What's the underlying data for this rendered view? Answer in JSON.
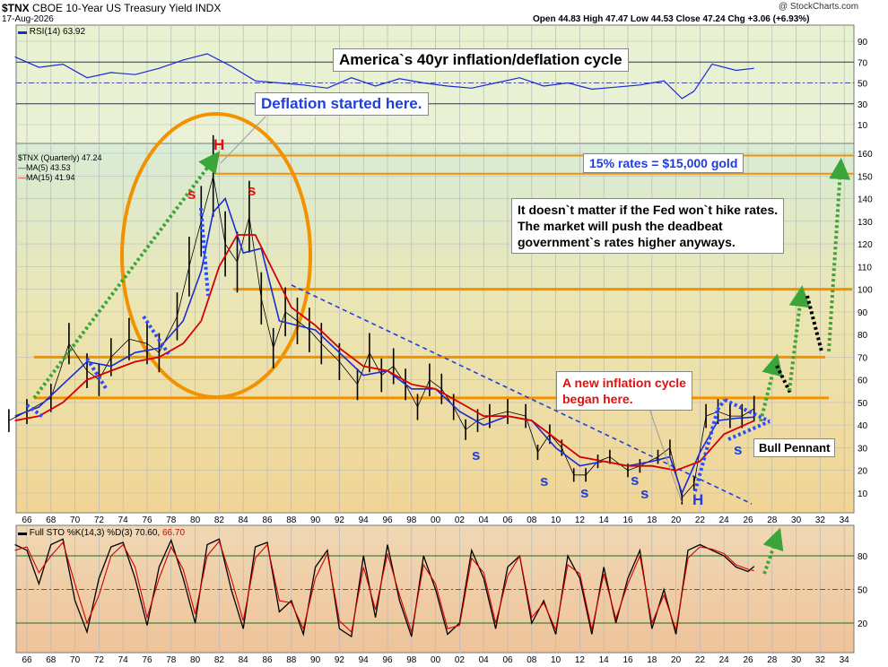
{
  "header": {
    "symbol": "$TNX",
    "description": "CBOE 10-Year US Treasury Yield INDX",
    "date": "17-Aug-2026",
    "ohlc": "Open 44.83  High 47.47  Low 44.53  Close 47.24  Chg +3.06 (+6.93%)",
    "watermark": "@ StockCharts.com"
  },
  "rsi_panel": {
    "legend": "RSI(14) 63.92",
    "ticks": [
      90,
      70,
      50,
      30,
      10
    ]
  },
  "main_panel": {
    "legend_symbol": "$TNX (Quarterly) 47.24",
    "legend_ma5": "MA(5) 43.53",
    "legend_ma15": "MA(15) 41.94",
    "ticks": [
      160,
      150,
      140,
      130,
      120,
      110,
      100,
      90,
      80,
      70,
      60,
      50,
      40,
      30,
      20,
      10
    ]
  },
  "sto_panel": {
    "legend_prefix": "Full STO %K(14,3) %D(3) 70.60, ",
    "legend_d": "66.70",
    "ticks": [
      80,
      50,
      20
    ]
  },
  "x_labels": [
    "66",
    "68",
    "70",
    "72",
    "74",
    "76",
    "78",
    "80",
    "82",
    "84",
    "86",
    "88",
    "90",
    "92",
    "94",
    "96",
    "98",
    "00",
    "02",
    "04",
    "06",
    "08",
    "10",
    "12",
    "14",
    "16",
    "18",
    "20",
    "22",
    "24",
    "26",
    "28",
    "30",
    "32",
    "34"
  ],
  "annotations": {
    "title": "America`s 40yr inflation/deflation cycle",
    "deflation": "Deflation started here.",
    "gold": "15% rates = $15,000 gold",
    "fed": "It doesn`t matter if the Fed won`t hike rates.\nThe market will push the deadbeat\ngovernment`s rates higher anyways.",
    "inflation": "A new inflation cycle\nbegan here.",
    "pennant": "Bull Pennant",
    "h_top": "H",
    "h_bottom": "H",
    "s_label": "s"
  },
  "colors": {
    "price": "#000000",
    "ma5": "#1a2bd6",
    "ma15": "#d40000",
    "orange": "#f39200",
    "green_arrow": "#3aa63a",
    "blue_arrow": "#2a4bff",
    "rsi_bg_top": "#e9f3cf",
    "main_bg_top": "#d9ecd4",
    "main_bg_bottom": "#f1d69a",
    "sto_bg": "#f2c9a0"
  },
  "chart_data": [
    {
      "type": "line",
      "title": "RSI(14)",
      "x": [
        1965,
        1967,
        1969,
        1971,
        1973,
        1975,
        1977,
        1979,
        1981,
        1983,
        1985,
        1987,
        1989,
        1991,
        1993,
        1995,
        1997,
        1999,
        2001,
        2003,
        2005,
        2007,
        2009,
        2011,
        2013,
        2015,
        2017,
        2019,
        2020.5,
        2021.5,
        2023,
        2025,
        2026.5
      ],
      "y": [
        75,
        65,
        68,
        55,
        60,
        58,
        64,
        72,
        78,
        66,
        52,
        50,
        48,
        45,
        55,
        47,
        54,
        50,
        47,
        45,
        50,
        55,
        47,
        50,
        44,
        46,
        48,
        52,
        35,
        42,
        68,
        62,
        64
      ],
      "ylim": [
        0,
        100
      ],
      "reference_lines": [
        70,
        50,
        30
      ]
    },
    {
      "type": "line",
      "title": "$TNX (Quarterly)",
      "series": [
        {
          "name": "$TNX",
          "x": [
            1964.5,
            1966,
            1968,
            1969.5,
            1971,
            1972,
            1973,
            1974.5,
            1976,
            1977,
            1978.5,
            1979.5,
            1980.5,
            1981.5,
            1982.5,
            1983.5,
            1984.5,
            1985.5,
            1986.5,
            1987.5,
            1988.5,
            1989.5,
            1990.5,
            1992,
            1993.5,
            1994.5,
            1995.5,
            1996.5,
            1997.5,
            1998.5,
            1999.5,
            2000.5,
            2001.5,
            2002.5,
            2003.5,
            2004.5,
            2006,
            2007.5,
            2008.5,
            2009.5,
            2010.5,
            2011.5,
            2012.5,
            2013.5,
            2014.5,
            2016,
            2017,
            2018.5,
            2019.5,
            2020.5,
            2021.5,
            2022.5,
            2023.5,
            2024.5,
            2025.5,
            2026.5
          ],
          "y": [
            42,
            46,
            52,
            76,
            64,
            60,
            70,
            78,
            76,
            72,
            88,
            110,
            130,
            150,
            120,
            112,
            132,
            96,
            74,
            90,
            86,
            82,
            76,
            68,
            58,
            72,
            62,
            66,
            58,
            48,
            60,
            56,
            48,
            38,
            42,
            44,
            46,
            44,
            28,
            36,
            30,
            18,
            18,
            24,
            26,
            20,
            22,
            26,
            30,
            8,
            14,
            44,
            46,
            44,
            44,
            47.24
          ]
        },
        {
          "name": "MA(5)",
          "x": [
            1965,
            1967,
            1969,
            1971,
            1973,
            1975,
            1977,
            1979,
            1980.5,
            1981.5,
            1982.5,
            1984,
            1985.5,
            1987,
            1988.5,
            1990,
            1992,
            1994,
            1996,
            1998,
            2000,
            2002,
            2004,
            2006,
            2008,
            2010,
            2012,
            2014,
            2016,
            2018,
            2019.5,
            2020.5,
            2022,
            2023.5,
            2025,
            2026.5
          ],
          "y": [
            44,
            48,
            58,
            68,
            66,
            72,
            74,
            86,
            108,
            134,
            140,
            116,
            118,
            86,
            84,
            82,
            72,
            62,
            64,
            56,
            56,
            46,
            40,
            44,
            42,
            30,
            22,
            24,
            22,
            24,
            26,
            10,
            28,
            42,
            43,
            43.53
          ]
        },
        {
          "name": "MA(15)",
          "x": [
            1965,
            1967,
            1969,
            1971,
            1973,
            1975,
            1977,
            1979,
            1980.5,
            1982,
            1983.5,
            1985,
            1986.5,
            1988,
            1990,
            1992,
            1994,
            1996,
            1998,
            2000,
            2002,
            2004,
            2006,
            2008,
            2010,
            2012,
            2014,
            2016,
            2018,
            2020,
            2022,
            2024,
            2026.5
          ],
          "y": [
            42,
            44,
            50,
            60,
            64,
            68,
            70,
            76,
            86,
            110,
            124,
            124,
            108,
            92,
            84,
            74,
            66,
            64,
            58,
            56,
            50,
            44,
            44,
            42,
            34,
            26,
            24,
            22,
            22,
            20,
            24,
            36,
            41.94
          ]
        }
      ],
      "ylim": [
        0,
        165
      ],
      "resistance_levels": [
        159,
        151,
        100,
        70,
        52
      ]
    },
    {
      "type": "line",
      "title": "Full STO %K(14,3) %D(3)",
      "series": [
        {
          "name": "%K",
          "x": [
            1965,
            1966,
            1967,
            1968,
            1969,
            1970,
            1971,
            1972,
            1973,
            1974,
            1975,
            1976,
            1977,
            1978,
            1979,
            1980,
            1981,
            1982,
            1983,
            1984,
            1985,
            1986,
            1987,
            1988,
            1989,
            1990,
            1991,
            1992,
            1993,
            1994,
            1995,
            1996,
            1997,
            1998,
            1999,
            2000,
            2001,
            2002,
            2003,
            2004,
            2005,
            2006,
            2007,
            2008,
            2009,
            2010,
            2011,
            2012,
            2013,
            2014,
            2015,
            2016,
            2017,
            2018,
            2019,
            2020,
            2021,
            2022,
            2023,
            2024,
            2025,
            2026,
            2026.5
          ],
          "y": [
            90,
            85,
            55,
            90,
            95,
            40,
            12,
            60,
            88,
            92,
            60,
            18,
            70,
            94,
            60,
            20,
            90,
            95,
            50,
            15,
            88,
            92,
            30,
            40,
            10,
            70,
            85,
            15,
            8,
            80,
            25,
            90,
            40,
            8,
            80,
            50,
            10,
            20,
            85,
            60,
            15,
            70,
            80,
            20,
            40,
            10,
            80,
            60,
            10,
            70,
            20,
            60,
            85,
            15,
            50,
            10,
            85,
            90,
            85,
            80,
            70,
            66,
            70.6
          ]
        },
        {
          "name": "%D",
          "x": [
            1965,
            1966,
            1967,
            1968,
            1969,
            1970,
            1971,
            1972,
            1973,
            1974,
            1975,
            1976,
            1977,
            1978,
            1979,
            1980,
            1981,
            1982,
            1983,
            1984,
            1985,
            1986,
            1987,
            1988,
            1989,
            1990,
            1991,
            1992,
            1993,
            1994,
            1995,
            1996,
            1997,
            1998,
            1999,
            2000,
            2001,
            2002,
            2003,
            2004,
            2005,
            2006,
            2007,
            2008,
            2009,
            2010,
            2011,
            2012,
            2013,
            2014,
            2015,
            2016,
            2017,
            2018,
            2019,
            2020,
            2021,
            2022,
            2023,
            2024,
            2025,
            2026,
            2026.5
          ],
          "y": [
            85,
            88,
            65,
            80,
            92,
            55,
            20,
            45,
            80,
            90,
            70,
            25,
            60,
            88,
            68,
            28,
            80,
            93,
            60,
            22,
            78,
            90,
            40,
            38,
            15,
            60,
            82,
            22,
            12,
            70,
            32,
            82,
            45,
            12,
            72,
            55,
            15,
            18,
            78,
            65,
            20,
            62,
            80,
            25,
            38,
            14,
            72,
            64,
            14,
            64,
            24,
            55,
            80,
            20,
            45,
            14,
            78,
            88,
            86,
            82,
            72,
            68,
            66.7
          ]
        }
      ],
      "ylim": [
        0,
        100
      ],
      "reference_lines": [
        80,
        50,
        20
      ]
    }
  ]
}
